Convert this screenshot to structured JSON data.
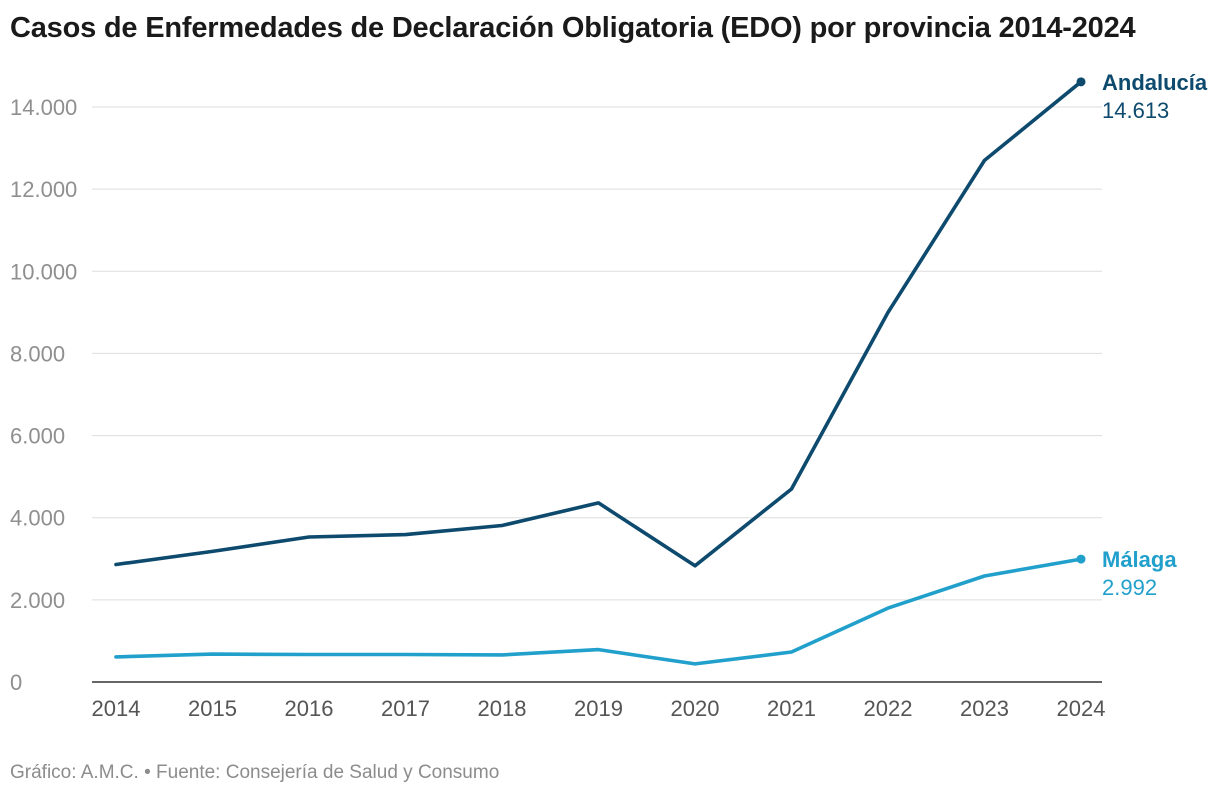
{
  "chart_data": {
    "type": "line",
    "title": "Casos de Enfermedades de Declaración Obligatoria (EDO) por provincia 2014-2024",
    "xlabel": "",
    "ylabel": "",
    "x": [
      "2014",
      "2015",
      "2016",
      "2017",
      "2018",
      "2019",
      "2020",
      "2021",
      "2022",
      "2023",
      "2024"
    ],
    "ylim": [
      0,
      14500
    ],
    "yticks": [
      0,
      2000,
      4000,
      6000,
      8000,
      10000,
      12000,
      14000
    ],
    "ytick_labels": [
      "0",
      "2.000",
      "4.000",
      "6.000",
      "8.000",
      "10.000",
      "12.000",
      "14.000"
    ],
    "grid": true,
    "series": [
      {
        "name": "Andalucía",
        "color": "#0d4a6e",
        "values": [
          2860,
          3180,
          3530,
          3590,
          3810,
          4360,
          2830,
          4700,
          9000,
          12700,
          14613
        ],
        "end_label": "14.613"
      },
      {
        "name": "Málaga",
        "color": "#22a0cc",
        "values": [
          610,
          680,
          670,
          670,
          660,
          790,
          440,
          730,
          1800,
          2580,
          2992
        ],
        "end_label": "2.992"
      }
    ]
  },
  "footer": "Gráfico: A.M.C. • Fuente: Consejería de Salud y Consumo"
}
